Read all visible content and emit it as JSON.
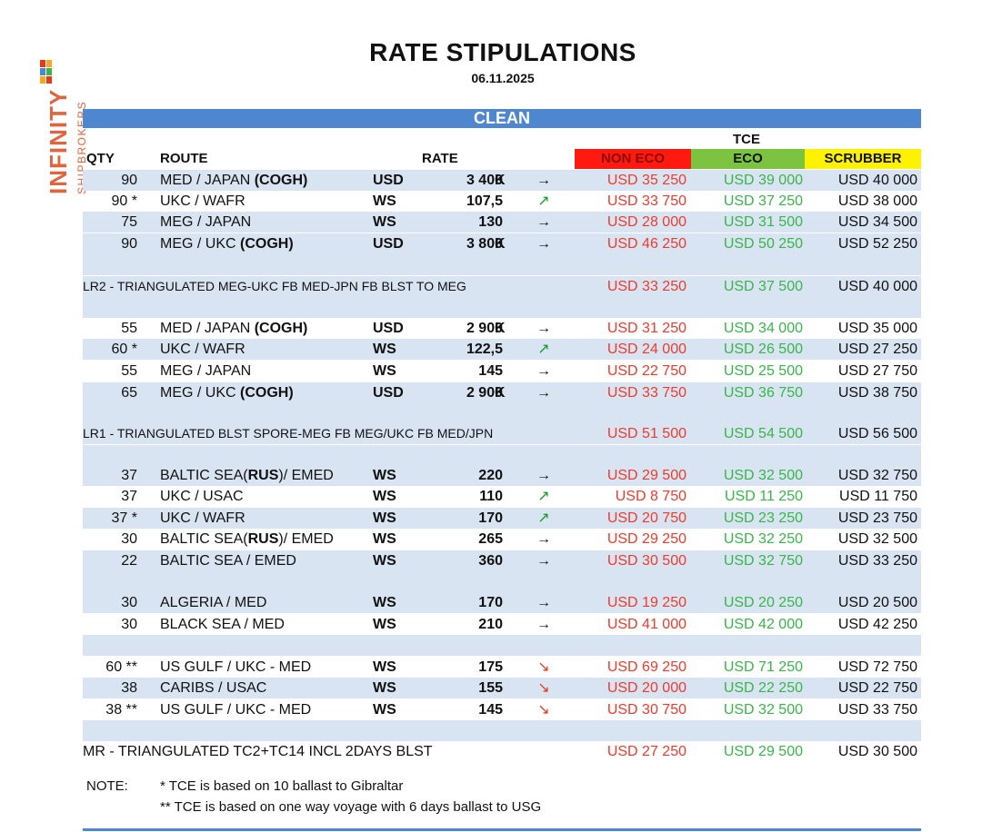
{
  "logo": {
    "brand": "INFINITY",
    "sub": "SHIPBROKERS"
  },
  "title": "RATE STIPULATIONS",
  "date": "06.11.2025",
  "section": "CLEAN",
  "headers": {
    "qty": "QTY",
    "route": "ROUTE",
    "rate": "RATE",
    "tce": "TCE",
    "non_eco": "NON ECO",
    "eco": "ECO",
    "scrubber": "SCRUBBER"
  },
  "colors": {
    "section_bar": "#4e86cf",
    "row_shade": "#d8e4f1",
    "non_eco_bg": "#ff1a0f",
    "eco_bg": "#7cc440",
    "scrubber_bg": "#fff200",
    "non_eco_text": "#ee3b2d",
    "eco_text": "#3ab54a"
  },
  "rows": [
    {
      "qty": "90",
      "route": "MED / JAPAN ",
      "route_bold": "(COGH)",
      "cur": "USD",
      "rate": "3 400",
      "unit": "K",
      "arrow": "→",
      "non_eco": "USD 35 250",
      "eco": "USD 39 000",
      "scrubber": "USD 40 000"
    },
    {
      "qty": "90 *",
      "route": "UKC / WAFR",
      "cur": "WS",
      "rate": "107,5",
      "arrow": "↗",
      "non_eco": "USD 33 750",
      "eco": "USD 37 250",
      "scrubber": "USD 38 000"
    },
    {
      "qty": "75",
      "route": "MEG / JAPAN",
      "cur": "WS",
      "rate": "130",
      "arrow": "→",
      "non_eco": "USD 28 000",
      "eco": "USD 31 500",
      "scrubber": "USD 34 500"
    },
    {
      "qty": "90",
      "route": "MEG / UKC ",
      "route_bold": "(COGH)",
      "cur": "USD",
      "rate": "3 800",
      "unit": "K",
      "arrow": "→",
      "non_eco": "USD 46 250",
      "eco": "USD 50 250",
      "scrubber": "USD 52 250"
    },
    {
      "tri": "LR2 - TRIANGULATED MEG-UKC FB MED-JPN FB BLST TO MEG",
      "non_eco": "USD 33 250",
      "eco": "USD 37 500",
      "scrubber": "USD 40 000"
    },
    {
      "qty": "55",
      "route": "MED / JAPAN ",
      "route_bold": "(COGH)",
      "cur": "USD",
      "rate": "2 900",
      "unit": "K",
      "arrow": "→",
      "non_eco": "USD 31 250",
      "eco": "USD 34 000",
      "scrubber": "USD 35 000"
    },
    {
      "qty": "60 *",
      "route": "UKC / WAFR",
      "cur": "WS",
      "rate": "122,5",
      "arrow": "↗",
      "non_eco": "USD 24 000",
      "eco": "USD 26 500",
      "scrubber": "USD 27 250"
    },
    {
      "qty": "55",
      "route": "MEG / JAPAN",
      "cur": "WS",
      "rate": "145",
      "arrow": "→",
      "non_eco": "USD 22 750",
      "eco": "USD 25 500",
      "scrubber": "USD 27 750"
    },
    {
      "qty": "65",
      "route": "MEG / UKC ",
      "route_bold": "(COGH)",
      "cur": "USD",
      "rate": "2 900",
      "unit": "K",
      "arrow": "→",
      "non_eco": "USD 33 750",
      "eco": "USD 36 750",
      "scrubber": "USD 38 750"
    },
    {
      "tri": "LR1 - TRIANGULATED BLST SPORE-MEG FB MEG/UKC FB MED/JPN",
      "non_eco": "USD 51 500",
      "eco": "USD 54 500",
      "scrubber": "USD 56 500"
    },
    {
      "qty": "37",
      "route": "BALTIC SEA(",
      "route_bold": "RUS",
      "route_tail": ")/ EMED",
      "cur": "WS",
      "rate": "220",
      "arrow": "→",
      "non_eco": "USD 29 500",
      "eco": "USD 32 500",
      "scrubber": "USD 32 750"
    },
    {
      "qty": "37",
      "route": "UKC / USAC",
      "cur": "WS",
      "rate": "110",
      "arrow": "↗",
      "non_eco": "USD 8 750",
      "eco": "USD 11 250",
      "scrubber": "USD 11 750"
    },
    {
      "qty": "37 *",
      "route": "UKC / WAFR",
      "cur": "WS",
      "rate": "170",
      "arrow": "↗",
      "non_eco": "USD 20 750",
      "eco": "USD 23 250",
      "scrubber": "USD 23 750"
    },
    {
      "qty": "30",
      "route": "BALTIC SEA(",
      "route_bold": "RUS",
      "route_tail": ")/ EMED",
      "cur": "WS",
      "rate": "265",
      "arrow": "→",
      "non_eco": "USD 29 250",
      "eco": "USD 32 250",
      "scrubber": "USD 32 500"
    },
    {
      "qty": "22",
      "route": "BALTIC SEA / EMED",
      "cur": "WS",
      "rate": "360",
      "arrow": "→",
      "non_eco": "USD 30 500",
      "eco": "USD 32 750",
      "scrubber": "USD 33 250"
    },
    {
      "qty": "30",
      "route": "ALGERIA / MED",
      "cur": "WS",
      "rate": "170",
      "arrow": "→",
      "non_eco": "USD 19 250",
      "eco": "USD 20 250",
      "scrubber": "USD 20 500"
    },
    {
      "qty": "30",
      "route": "BLACK SEA / MED",
      "cur": "WS",
      "rate": "210",
      "arrow": "→",
      "non_eco": "USD 41 000",
      "eco": "USD 42 000",
      "scrubber": "USD 42 250"
    },
    {
      "qty": "60 **",
      "route": "US GULF / UKC - MED",
      "cur": "WS",
      "rate": "175",
      "arrow": "↘",
      "non_eco": "USD 69 250",
      "eco": "USD 71 250",
      "scrubber": "USD 72 750"
    },
    {
      "qty": "38",
      "route": "CARIBS / USAC",
      "cur": "WS",
      "rate": "155",
      "arrow": "↘",
      "non_eco": "USD 20 000",
      "eco": "USD 22 250",
      "scrubber": "USD 22 750"
    },
    {
      "qty": "38 **",
      "route": "US GULF / UKC - MED",
      "cur": "WS",
      "rate": "145",
      "arrow": "↘",
      "non_eco": "USD 30 750",
      "eco": "USD 32 500",
      "scrubber": "USD 33 750"
    },
    {
      "tri": "MR - TRIANGULATED TC2+TC14 INCL 2DAYS BLST",
      "non_eco": "USD 27 250",
      "eco": "USD 29 500",
      "scrubber": "USD 30 500"
    }
  ],
  "notes": {
    "label": "NOTE:",
    "lines": [
      "*  TCE is based on 10 ballast to Gibraltar",
      "** TCE is based on one way voyage with 6 days ballast to USG"
    ]
  }
}
